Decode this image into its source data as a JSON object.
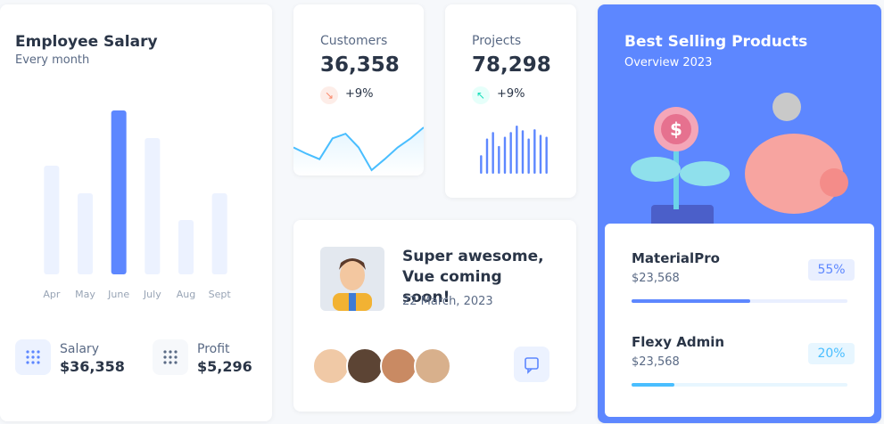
{
  "salary": {
    "title": "Employee Salary",
    "subtitle": "Every month",
    "stats": [
      {
        "label": "Salary",
        "value": "$36,358"
      },
      {
        "label": "Profit",
        "value": "$5,296"
      }
    ]
  },
  "customers": {
    "label": "Customers",
    "value": "36,358",
    "change": "+9%"
  },
  "projects": {
    "label": "Projects",
    "value": "78,298",
    "change": "+9%"
  },
  "announcement": {
    "title": "Super awesome, Vue coming soon!",
    "date": "22 March, 2023"
  },
  "best_selling": {
    "title": "Best Selling Products",
    "subtitle": "Overview 2023",
    "products": [
      {
        "name": "MaterialPro",
        "price": "$23,568",
        "percent": 55,
        "percent_label": "55%",
        "color": "#5d87ff"
      },
      {
        "name": "Flexy Admin",
        "price": "$23,568",
        "percent": 20,
        "percent_label": "20%",
        "color": "#49beff"
      }
    ]
  },
  "chart_data": [
    {
      "type": "bar",
      "categories": [
        "Apr",
        "May",
        "June",
        "July",
        "Aug",
        "Sept"
      ],
      "values": [
        122,
        91,
        184,
        153,
        61,
        91
      ],
      "colors": [
        "#ecf2ff",
        "#ecf2ff",
        "#5d87ff",
        "#ecf2ff",
        "#ecf2ff",
        "#ecf2ff"
      ]
    },
    {
      "type": "line",
      "values": [
        35,
        28,
        22,
        45,
        50,
        35,
        10,
        22,
        35,
        45,
        57
      ],
      "color": "#49beff"
    },
    {
      "type": "spark-bar",
      "values": [
        20,
        38,
        45,
        30,
        40,
        45,
        52,
        47,
        38,
        48,
        42,
        40
      ],
      "color": "#5d87ff"
    }
  ]
}
